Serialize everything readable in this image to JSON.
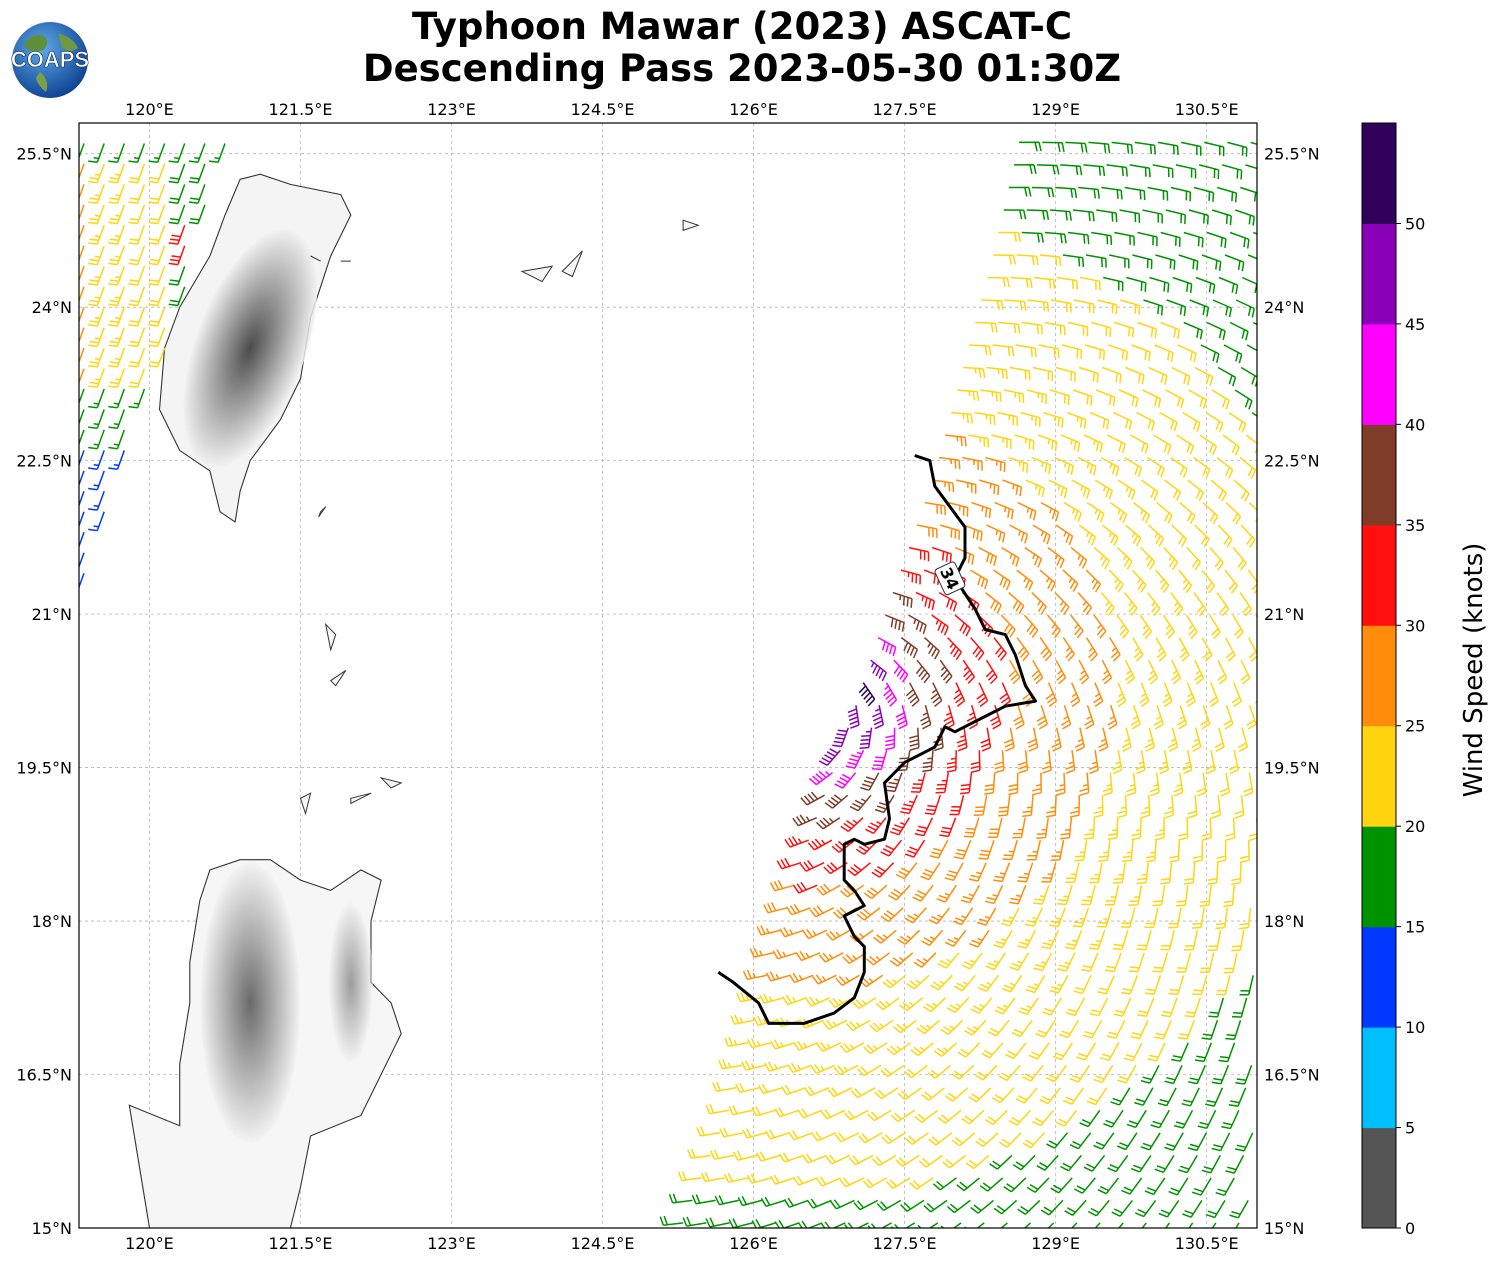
{
  "title": {
    "line1": "Typhoon Mawar (2023) ASCAT-C",
    "line2": "Descending Pass 2023-05-30 01:30Z"
  },
  "logo": {
    "text": "COAPS"
  },
  "map_extent": {
    "lon_min": 119.3,
    "lon_max": 131.0,
    "lat_min": 15.0,
    "lat_max": 25.8
  },
  "lon_ticks": [
    {
      "value": 120.0,
      "label": "120°E"
    },
    {
      "value": 121.5,
      "label": "121.5°E"
    },
    {
      "value": 123.0,
      "label": "123°E"
    },
    {
      "value": 124.5,
      "label": "124.5°E"
    },
    {
      "value": 126.0,
      "label": "126°E"
    },
    {
      "value": 127.5,
      "label": "127.5°E"
    },
    {
      "value": 129.0,
      "label": "129°E"
    },
    {
      "value": 130.5,
      "label": "130.5°E"
    }
  ],
  "lat_ticks": [
    {
      "value": 25.5,
      "label": "25.5°N"
    },
    {
      "value": 24.0,
      "label": "24°N"
    },
    {
      "value": 22.5,
      "label": "22.5°N"
    },
    {
      "value": 21.0,
      "label": "21°N"
    },
    {
      "value": 19.5,
      "label": "19.5°N"
    },
    {
      "value": 18.0,
      "label": "18°N"
    },
    {
      "value": 16.5,
      "label": "16.5°N"
    },
    {
      "value": 15.0,
      "label": "15°N"
    }
  ],
  "colorbar": {
    "label": "Wind Speed (knots)",
    "bins": [
      {
        "min": 0,
        "max": 5,
        "color": "#555555"
      },
      {
        "min": 5,
        "max": 10,
        "color": "#00bfff"
      },
      {
        "min": 10,
        "max": 15,
        "color": "#0038ff"
      },
      {
        "min": 15,
        "max": 20,
        "color": "#009300"
      },
      {
        "min": 20,
        "max": 25,
        "color": "#ffd510"
      },
      {
        "min": 25,
        "max": 30,
        "color": "#ff8c0a"
      },
      {
        "min": 30,
        "max": 35,
        "color": "#ff0f0f"
      },
      {
        "min": 35,
        "max": 40,
        "color": "#7f3c28"
      },
      {
        "min": 40,
        "max": 45,
        "color": "#ff00ff"
      },
      {
        "min": 45,
        "max": 50,
        "color": "#8a00b8"
      },
      {
        "min": 50,
        "max": 55,
        "color": "#30005a"
      }
    ],
    "ticks": [
      "0",
      "5",
      "10",
      "15",
      "20",
      "25",
      "30",
      "35",
      "40",
      "45",
      "50"
    ]
  },
  "contour": {
    "label": "34",
    "points": [
      [
        127.6,
        22.55
      ],
      [
        127.75,
        22.5
      ],
      [
        127.8,
        22.25
      ],
      [
        127.95,
        22.05
      ],
      [
        128.1,
        21.85
      ],
      [
        128.1,
        21.55
      ],
      [
        128.0,
        21.35
      ],
      [
        128.2,
        21.05
      ],
      [
        128.3,
        20.85
      ],
      [
        128.5,
        20.8
      ],
      [
        128.6,
        20.6
      ],
      [
        128.7,
        20.3
      ],
      [
        128.8,
        20.15
      ],
      [
        128.5,
        20.1
      ],
      [
        128.3,
        20.0
      ],
      [
        128.0,
        19.85
      ],
      [
        127.9,
        19.9
      ],
      [
        127.8,
        19.7
      ],
      [
        127.5,
        19.55
      ],
      [
        127.3,
        19.35
      ],
      [
        127.35,
        19.0
      ],
      [
        127.3,
        18.8
      ],
      [
        127.1,
        18.75
      ],
      [
        127.0,
        18.8
      ],
      [
        126.9,
        18.75
      ],
      [
        126.9,
        18.4
      ],
      [
        127.0,
        18.3
      ],
      [
        127.1,
        18.15
      ],
      [
        126.9,
        18.05
      ],
      [
        127.0,
        17.85
      ],
      [
        127.1,
        17.75
      ],
      [
        127.1,
        17.5
      ],
      [
        127.0,
        17.25
      ],
      [
        126.8,
        17.1
      ],
      [
        126.5,
        17.0
      ],
      [
        126.15,
        17.0
      ],
      [
        126.05,
        17.2
      ],
      [
        125.8,
        17.4
      ],
      [
        125.65,
        17.5
      ]
    ]
  },
  "swath": {
    "west_edge": [
      [
        125.2,
        15.0
      ],
      [
        125.7,
        16.2
      ],
      [
        126.0,
        17.3
      ],
      [
        126.4,
        18.6
      ],
      [
        126.9,
        20.0
      ],
      [
        127.3,
        21.2
      ],
      [
        127.7,
        22.3
      ],
      [
        128.0,
        23.4
      ],
      [
        128.3,
        24.5
      ],
      [
        128.6,
        25.8
      ]
    ],
    "east_edge": [
      [
        130.8,
        15.0
      ],
      [
        131.0,
        25.8
      ]
    ],
    "wind_center": {
      "lon": 126.55,
      "lat": 20.2
    },
    "rmw_deg": 0.5
  },
  "taiwan_swath": {
    "east_edge": [
      [
        119.35,
        21.5
      ],
      [
        119.6,
        22.0
      ],
      [
        120.0,
        23.2
      ],
      [
        120.4,
        24.2
      ],
      [
        120.6,
        25.0
      ],
      [
        120.9,
        25.8
      ]
    ]
  },
  "land": {
    "taiwan": [
      [
        120.9,
        25.25
      ],
      [
        121.1,
        25.3
      ],
      [
        121.4,
        25.2
      ],
      [
        121.9,
        25.1
      ],
      [
        122.0,
        24.9
      ],
      [
        121.8,
        24.5
      ],
      [
        121.6,
        23.9
      ],
      [
        121.5,
        23.3
      ],
      [
        121.3,
        22.9
      ],
      [
        121.0,
        22.5
      ],
      [
        120.9,
        22.2
      ],
      [
        120.85,
        21.9
      ],
      [
        120.7,
        22.0
      ],
      [
        120.6,
        22.4
      ],
      [
        120.3,
        22.6
      ],
      [
        120.1,
        23.0
      ],
      [
        120.15,
        23.6
      ],
      [
        120.3,
        24.0
      ],
      [
        120.6,
        24.5
      ],
      [
        120.75,
        24.9
      ]
    ],
    "luzon": [
      [
        120.6,
        18.5
      ],
      [
        120.9,
        18.6
      ],
      [
        121.2,
        18.6
      ],
      [
        121.5,
        18.4
      ],
      [
        121.8,
        18.3
      ],
      [
        122.1,
        18.5
      ],
      [
        122.3,
        18.4
      ],
      [
        122.2,
        18.0
      ],
      [
        122.2,
        17.4
      ],
      [
        122.4,
        17.2
      ],
      [
        122.5,
        16.9
      ],
      [
        122.3,
        16.5
      ],
      [
        122.1,
        16.1
      ],
      [
        121.6,
        15.9
      ],
      [
        121.5,
        15.4
      ],
      [
        121.4,
        15.0
      ],
      [
        120.0,
        15.0
      ],
      [
        119.9,
        15.6
      ],
      [
        119.8,
        16.2
      ],
      [
        120.3,
        16.0
      ],
      [
        120.3,
        16.6
      ],
      [
        120.4,
        17.2
      ],
      [
        120.4,
        17.6
      ],
      [
        120.5,
        18.2
      ]
    ],
    "islands": [
      [
        [
          122.3,
          19.4
        ],
        [
          122.5,
          19.35
        ],
        [
          122.4,
          19.3
        ]
      ],
      [
        [
          122.0,
          19.2
        ],
        [
          122.2,
          19.25
        ],
        [
          122.0,
          19.15
        ]
      ],
      [
        [
          121.5,
          19.2
        ],
        [
          121.6,
          19.25
        ],
        [
          121.55,
          19.05
        ]
      ],
      [
        [
          121.8,
          20.35
        ],
        [
          121.95,
          20.45
        ],
        [
          121.85,
          20.3
        ]
      ],
      [
        [
          121.75,
          20.9
        ],
        [
          121.85,
          20.8
        ],
        [
          121.8,
          20.65
        ]
      ],
      [
        [
          121.7,
          22.0
        ],
        [
          121.75,
          22.05
        ],
        [
          121.68,
          21.95
        ]
      ],
      [
        [
          121.6,
          24.5
        ],
        [
          121.7,
          24.45
        ]
      ],
      [
        [
          123.7,
          24.35
        ],
        [
          124.0,
          24.4
        ],
        [
          123.9,
          24.25
        ]
      ],
      [
        [
          124.1,
          24.35
        ],
        [
          124.3,
          24.55
        ],
        [
          124.2,
          24.3
        ]
      ],
      [
        [
          125.3,
          24.85
        ],
        [
          125.45,
          24.8
        ],
        [
          125.3,
          24.75
        ]
      ],
      [
        [
          121.9,
          24.45
        ],
        [
          122.0,
          24.45
        ]
      ]
    ]
  }
}
